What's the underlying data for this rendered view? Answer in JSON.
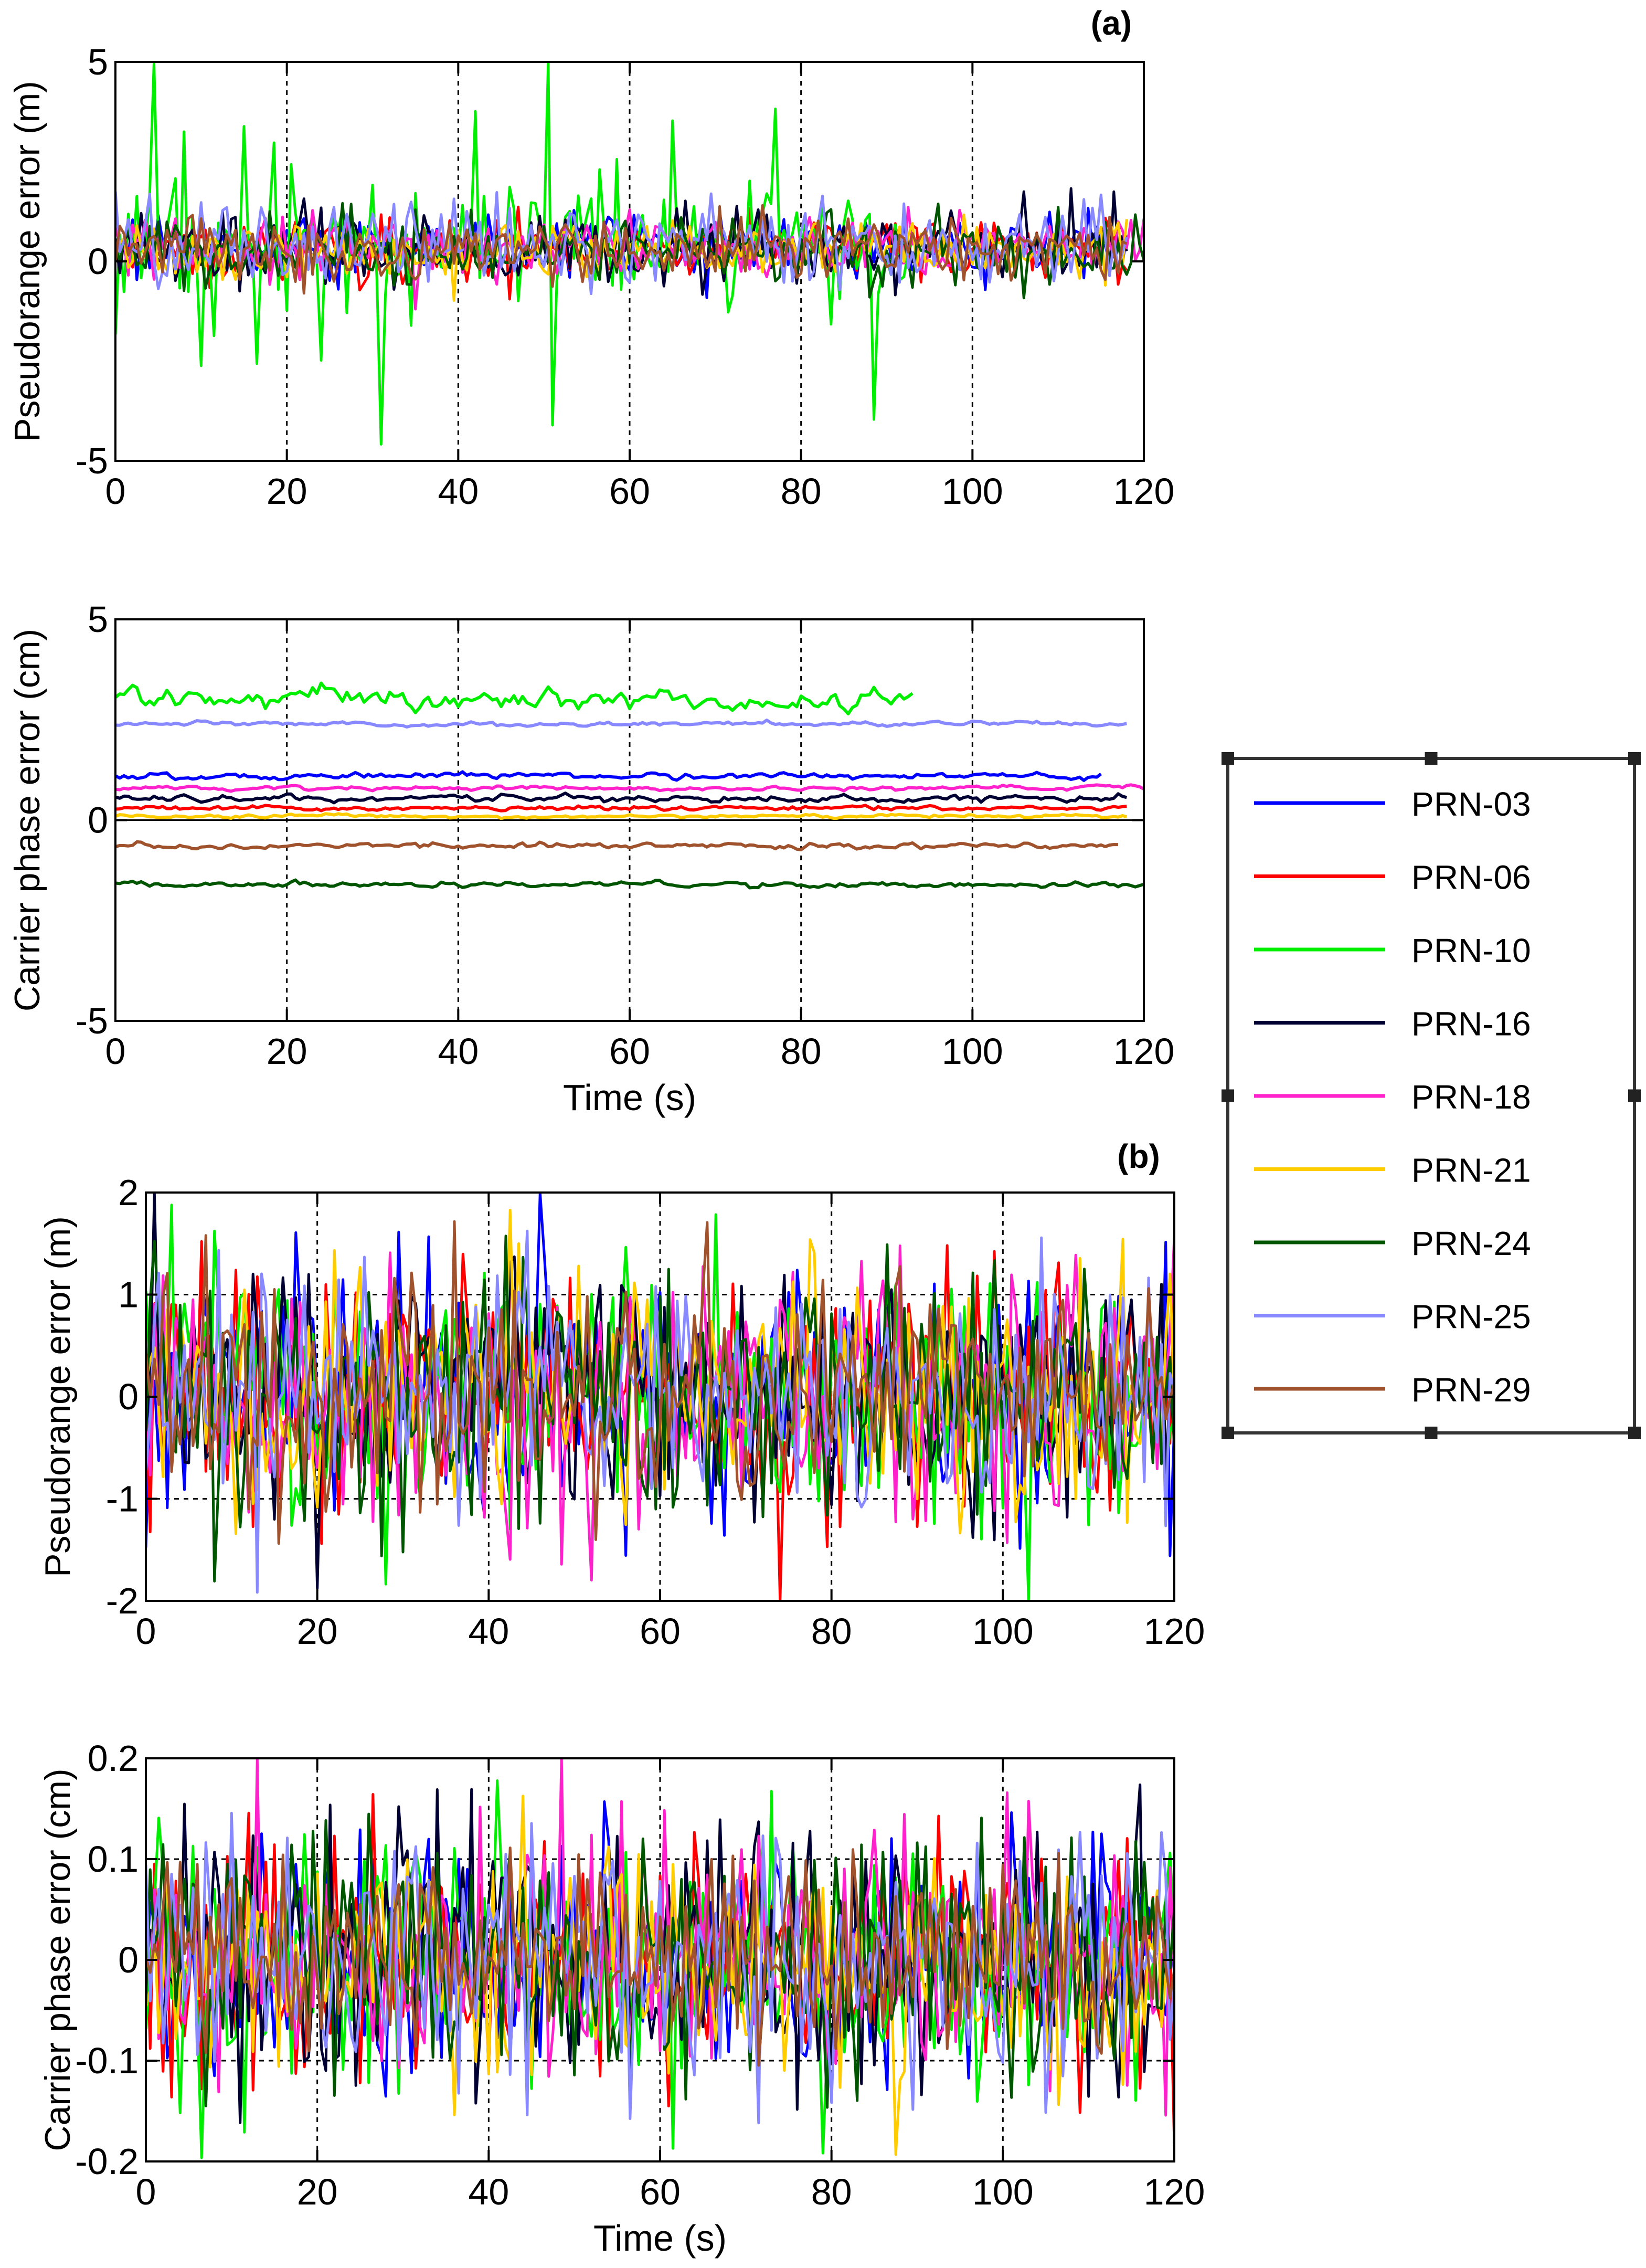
{
  "figure": {
    "panel_a_label": "(a)",
    "panel_b_label": "(b)"
  },
  "legend": {
    "entries": [
      {
        "label": "PRN-03",
        "color": "#0000ff"
      },
      {
        "label": "PRN-06",
        "color": "#ff0000"
      },
      {
        "label": "PRN-10",
        "color": "#00ee00"
      },
      {
        "label": "PRN-16",
        "color": "#000033"
      },
      {
        "label": "PRN-18",
        "color": "#ff22cc"
      },
      {
        "label": "PRN-21",
        "color": "#ffcc00"
      },
      {
        "label": "PRN-24",
        "color": "#005500"
      },
      {
        "label": "PRN-25",
        "color": "#8888ff"
      },
      {
        "label": "PRN-29",
        "color": "#a0522d"
      }
    ]
  },
  "chart_data": [
    {
      "id": "a-pseudorange",
      "type": "line",
      "panel": "(a)",
      "title": "",
      "xlabel": "",
      "ylabel": "Pseudorange error (m)",
      "xlim": [
        0,
        120
      ],
      "ylim": [
        -5,
        5
      ],
      "xticks": [
        0,
        20,
        40,
        60,
        80,
        100,
        120
      ],
      "yticks": [
        -5,
        0,
        5
      ],
      "grid": "vertical dashed at 20,40,60,80,100",
      "series": [
        {
          "name": "PRN-03",
          "mean": 0.4,
          "noise": 0.4,
          "end": 118
        },
        {
          "name": "PRN-06",
          "mean": 0.3,
          "noise": 0.4,
          "end": 118
        },
        {
          "name": "PRN-10",
          "mean": 0.5,
          "noise": 2.2,
          "end": 93
        },
        {
          "name": "PRN-16",
          "mean": 0.4,
          "noise": 0.45,
          "end": 118
        },
        {
          "name": "PRN-18",
          "mean": 0.4,
          "noise": 0.4,
          "end": 120
        },
        {
          "name": "PRN-21",
          "mean": 0.3,
          "noise": 0.4,
          "end": 118
        },
        {
          "name": "PRN-24",
          "mean": 0.3,
          "noise": 0.45,
          "end": 120
        },
        {
          "name": "PRN-25",
          "mean": 0.4,
          "noise": 0.5,
          "end": 118
        },
        {
          "name": "PRN-29",
          "mean": 0.3,
          "noise": 0.4,
          "end": 118
        }
      ]
    },
    {
      "id": "a-carrier",
      "type": "line",
      "panel": "(a)",
      "title": "",
      "xlabel": "Time (s)",
      "ylabel": "Carrier phase error (cm)",
      "xlim": [
        0,
        120
      ],
      "ylim": [
        -5,
        5
      ],
      "xticks": [
        0,
        20,
        40,
        60,
        80,
        100,
        120
      ],
      "yticks": [
        -5,
        0,
        5
      ],
      "grid": "vertical dashed at 20,40,60,80,100; zero line",
      "series": [
        {
          "name": "PRN-03",
          "mean": 1.1,
          "noise": 0.05,
          "end": 115
        },
        {
          "name": "PRN-06",
          "mean": 0.3,
          "noise": 0.04,
          "end": 118
        },
        {
          "name": "PRN-10",
          "mean": 3.0,
          "noise": 0.2,
          "end": 93
        },
        {
          "name": "PRN-16",
          "mean": 0.55,
          "noise": 0.06,
          "end": 118
        },
        {
          "name": "PRN-18",
          "mean": 0.8,
          "noise": 0.04,
          "end": 120
        },
        {
          "name": "PRN-21",
          "mean": 0.1,
          "noise": 0.03,
          "end": 118
        },
        {
          "name": "PRN-24",
          "mean": -1.6,
          "noise": 0.05,
          "end": 120
        },
        {
          "name": "PRN-25",
          "mean": 2.4,
          "noise": 0.04,
          "end": 118
        },
        {
          "name": "PRN-29",
          "mean": -0.65,
          "noise": 0.05,
          "end": 117
        }
      ]
    },
    {
      "id": "b-pseudorange",
      "type": "line",
      "panel": "(b)",
      "title": "",
      "xlabel": "",
      "ylabel": "Pseudorange error (m)",
      "xlim": [
        0,
        120
      ],
      "ylim": [
        -2,
        2
      ],
      "xticks": [
        0,
        20,
        40,
        60,
        80,
        100,
        120
      ],
      "yticks": [
        -2,
        -1,
        0,
        1,
        2
      ],
      "grid": "dashed at x=20..100, y=-1,1",
      "series": [
        {
          "name": "PRN-03",
          "mean": 0.0,
          "noise": 0.6,
          "end": 120
        },
        {
          "name": "PRN-06",
          "mean": 0.0,
          "noise": 0.6,
          "end": 120
        },
        {
          "name": "PRN-10",
          "mean": 0.0,
          "noise": 0.65,
          "end": 120
        },
        {
          "name": "PRN-16",
          "mean": 0.0,
          "noise": 0.6,
          "end": 120
        },
        {
          "name": "PRN-18",
          "mean": 0.0,
          "noise": 0.65,
          "end": 120
        },
        {
          "name": "PRN-21",
          "mean": 0.0,
          "noise": 0.6,
          "end": 120
        },
        {
          "name": "PRN-24",
          "mean": 0.0,
          "noise": 0.65,
          "end": 120
        },
        {
          "name": "PRN-25",
          "mean": 0.0,
          "noise": 0.6,
          "end": 120
        },
        {
          "name": "PRN-29",
          "mean": 0.0,
          "noise": 0.55,
          "end": 120
        }
      ]
    },
    {
      "id": "b-carrier",
      "type": "line",
      "panel": "(b)",
      "title": "",
      "xlabel": "Time (s)",
      "ylabel": "Carrier phase error (cm)",
      "xlim": [
        0,
        120
      ],
      "ylim": [
        -0.2,
        0.2
      ],
      "xticks": [
        0,
        20,
        40,
        60,
        80,
        100,
        120
      ],
      "yticks": [
        -0.2,
        -0.1,
        0,
        0.1,
        0.2
      ],
      "grid": "dashed at x=20..100, y=-0.1,0.1",
      "series": [
        {
          "name": "PRN-03",
          "mean": 0.0,
          "noise": 0.06,
          "end": 120
        },
        {
          "name": "PRN-06",
          "mean": 0.0,
          "noise": 0.06,
          "end": 120
        },
        {
          "name": "PRN-10",
          "mean": 0.0,
          "noise": 0.07,
          "end": 120
        },
        {
          "name": "PRN-16",
          "mean": 0.0,
          "noise": 0.065,
          "end": 120
        },
        {
          "name": "PRN-18",
          "mean": 0.0,
          "noise": 0.065,
          "end": 120
        },
        {
          "name": "PRN-21",
          "mean": 0.0,
          "noise": 0.06,
          "end": 120
        },
        {
          "name": "PRN-24",
          "mean": 0.0,
          "noise": 0.06,
          "end": 120
        },
        {
          "name": "PRN-25",
          "mean": 0.0,
          "noise": 0.06,
          "end": 120
        },
        {
          "name": "PRN-29",
          "mean": 0.0,
          "noise": 0.055,
          "end": 120
        }
      ]
    }
  ]
}
